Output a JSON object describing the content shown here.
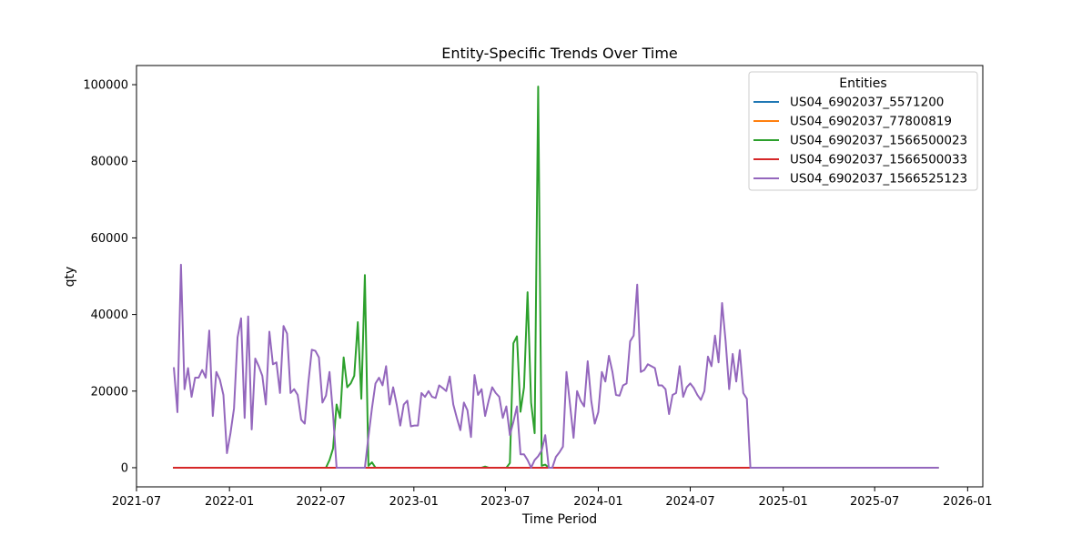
{
  "chart_data": {
    "type": "line",
    "title": "Entity-Specific Trends Over Time",
    "xlabel": "Time Period",
    "ylabel": "qty",
    "legend_title": "Entities",
    "legend_position": "top-right",
    "xlim": [
      "2021-07-01",
      "2026-01-31"
    ],
    "ylim": [
      -5000,
      105000
    ],
    "x_ticks": [
      "2021-07",
      "2022-01",
      "2022-07",
      "2023-01",
      "2023-07",
      "2024-01",
      "2024-07",
      "2025-01",
      "2025-07",
      "2026-01"
    ],
    "x_tick_dates": [
      "2021-07-01",
      "2022-01-01",
      "2022-07-01",
      "2023-01-01",
      "2023-07-01",
      "2024-01-01",
      "2024-07-01",
      "2025-01-01",
      "2025-07-01",
      "2026-01-01"
    ],
    "y_ticks": [
      0,
      20000,
      40000,
      60000,
      80000,
      100000
    ],
    "grid": false,
    "series": [
      {
        "name": "US04_6902037_5571200",
        "color": "#1f77b4",
        "points": [
          [
            "2021-09-13",
            0
          ],
          [
            "2025-11-03",
            0
          ]
        ]
      },
      {
        "name": "US04_6902037_77800819",
        "color": "#ff7f0e",
        "points": [
          [
            "2021-09-13",
            0
          ],
          [
            "2025-11-03",
            0
          ]
        ]
      },
      {
        "name": "US04_6902037_1566500023",
        "color": "#2ca02c",
        "points": [
          [
            "2021-09-13",
            0
          ],
          [
            "2022-07-11",
            0
          ],
          [
            "2022-07-18",
            2000
          ],
          [
            "2022-07-25",
            5000
          ],
          [
            "2022-08-01",
            16500
          ],
          [
            "2022-08-08",
            13000
          ],
          [
            "2022-08-15",
            28800
          ],
          [
            "2022-08-22",
            21000
          ],
          [
            "2022-08-29",
            22000
          ],
          [
            "2022-09-05",
            24000
          ],
          [
            "2022-09-12",
            38000
          ],
          [
            "2022-09-19",
            18000
          ],
          [
            "2022-09-26",
            50300
          ],
          [
            "2022-10-03",
            500
          ],
          [
            "2022-10-10",
            1400
          ],
          [
            "2022-10-17",
            0
          ],
          [
            "2023-05-15",
            0
          ],
          [
            "2023-05-22",
            300
          ],
          [
            "2023-05-29",
            0
          ],
          [
            "2023-07-03",
            0
          ],
          [
            "2023-07-10",
            1200
          ],
          [
            "2023-07-17",
            32500
          ],
          [
            "2023-07-24",
            34300
          ],
          [
            "2023-07-31",
            14600
          ],
          [
            "2023-08-07",
            21000
          ],
          [
            "2023-08-14",
            45800
          ],
          [
            "2023-08-21",
            17000
          ],
          [
            "2023-08-28",
            9000
          ],
          [
            "2023-09-04",
            99500
          ],
          [
            "2023-09-11",
            500
          ],
          [
            "2023-09-18",
            800
          ],
          [
            "2023-09-25",
            0
          ],
          [
            "2025-11-03",
            0
          ]
        ]
      },
      {
        "name": "US04_6902037_1566500033",
        "color": "#d62728",
        "points": [
          [
            "2021-09-13",
            0
          ],
          [
            "2024-11-18",
            0
          ]
        ]
      },
      {
        "name": "US04_6902037_1566525123",
        "color": "#9467bd",
        "points": [
          [
            "2021-09-13",
            26000
          ],
          [
            "2021-09-20",
            14500
          ],
          [
            "2021-09-27",
            53000
          ],
          [
            "2021-10-04",
            20500
          ],
          [
            "2021-10-11",
            26000
          ],
          [
            "2021-10-18",
            18500
          ],
          [
            "2021-10-25",
            23500
          ],
          [
            "2021-11-01",
            23500
          ],
          [
            "2021-11-08",
            25500
          ],
          [
            "2021-11-15",
            23500
          ],
          [
            "2021-11-22",
            35800
          ],
          [
            "2021-11-29",
            13500
          ],
          [
            "2021-12-06",
            25000
          ],
          [
            "2021-12-13",
            23000
          ],
          [
            "2021-12-20",
            19000
          ],
          [
            "2021-12-27",
            3800
          ],
          [
            "2022-01-03",
            9000
          ],
          [
            "2022-01-10",
            15500
          ],
          [
            "2022-01-17",
            34000
          ],
          [
            "2022-01-24",
            39000
          ],
          [
            "2022-01-31",
            13000
          ],
          [
            "2022-02-07",
            39500
          ],
          [
            "2022-02-14",
            10000
          ],
          [
            "2022-02-21",
            28500
          ],
          [
            "2022-02-28",
            26500
          ],
          [
            "2022-03-07",
            24000
          ],
          [
            "2022-03-14",
            16500
          ],
          [
            "2022-03-21",
            35500
          ],
          [
            "2022-03-28",
            27000
          ],
          [
            "2022-04-04",
            27500
          ],
          [
            "2022-04-11",
            19500
          ],
          [
            "2022-04-18",
            37000
          ],
          [
            "2022-04-25",
            35000
          ],
          [
            "2022-05-02",
            19500
          ],
          [
            "2022-05-09",
            20500
          ],
          [
            "2022-05-16",
            19000
          ],
          [
            "2022-05-23",
            12500
          ],
          [
            "2022-05-30",
            11500
          ],
          [
            "2022-06-06",
            22000
          ],
          [
            "2022-06-13",
            30800
          ],
          [
            "2022-06-20",
            30500
          ],
          [
            "2022-06-27",
            28800
          ],
          [
            "2022-07-04",
            17000
          ],
          [
            "2022-07-11",
            18800
          ],
          [
            "2022-07-18",
            25000
          ],
          [
            "2022-07-25",
            14000
          ],
          [
            "2022-08-01",
            0
          ],
          [
            "2022-09-19",
            0
          ],
          [
            "2022-09-26",
            0
          ],
          [
            "2022-10-03",
            8000
          ],
          [
            "2022-10-10",
            15500
          ],
          [
            "2022-10-17",
            22000
          ],
          [
            "2022-10-24",
            23500
          ],
          [
            "2022-10-31",
            21500
          ],
          [
            "2022-11-07",
            26500
          ],
          [
            "2022-11-14",
            16500
          ],
          [
            "2022-11-21",
            21000
          ],
          [
            "2022-11-28",
            16500
          ],
          [
            "2022-12-05",
            11000
          ],
          [
            "2022-12-12",
            16500
          ],
          [
            "2022-12-19",
            17500
          ],
          [
            "2022-12-26",
            10800
          ],
          [
            "2023-01-02",
            11000
          ],
          [
            "2023-01-09",
            11000
          ],
          [
            "2023-01-16",
            19500
          ],
          [
            "2023-01-23",
            18500
          ],
          [
            "2023-01-30",
            20000
          ],
          [
            "2023-02-06",
            18500
          ],
          [
            "2023-02-13",
            18200
          ],
          [
            "2023-02-20",
            21500
          ],
          [
            "2023-02-27",
            20800
          ],
          [
            "2023-03-06",
            20000
          ],
          [
            "2023-03-13",
            23800
          ],
          [
            "2023-03-20",
            16500
          ],
          [
            "2023-03-27",
            13000
          ],
          [
            "2023-04-03",
            9800
          ],
          [
            "2023-04-10",
            17000
          ],
          [
            "2023-04-17",
            15000
          ],
          [
            "2023-04-24",
            8000
          ],
          [
            "2023-05-01",
            24200
          ],
          [
            "2023-05-08",
            19000
          ],
          [
            "2023-05-15",
            20500
          ],
          [
            "2023-05-22",
            13500
          ],
          [
            "2023-05-29",
            17500
          ],
          [
            "2023-06-05",
            21000
          ],
          [
            "2023-06-12",
            19500
          ],
          [
            "2023-06-19",
            18500
          ],
          [
            "2023-06-26",
            13000
          ],
          [
            "2023-07-03",
            16000
          ],
          [
            "2023-07-10",
            8500
          ],
          [
            "2023-07-17",
            12000
          ],
          [
            "2023-07-24",
            16000
          ],
          [
            "2023-07-31",
            3500
          ],
          [
            "2023-08-07",
            3500
          ],
          [
            "2023-08-14",
            2000
          ],
          [
            "2023-08-21",
            0
          ],
          [
            "2023-08-28",
            2000
          ],
          [
            "2023-09-04",
            3000
          ],
          [
            "2023-09-11",
            4500
          ],
          [
            "2023-09-18",
            8500
          ],
          [
            "2023-09-25",
            0
          ],
          [
            "2023-10-02",
            0
          ],
          [
            "2023-10-09",
            2800
          ],
          [
            "2023-10-16",
            4000
          ],
          [
            "2023-10-23",
            5500
          ],
          [
            "2023-10-30",
            25000
          ],
          [
            "2023-11-06",
            16500
          ],
          [
            "2023-11-13",
            7800
          ],
          [
            "2023-11-20",
            20000
          ],
          [
            "2023-11-27",
            17500
          ],
          [
            "2023-12-04",
            16000
          ],
          [
            "2023-12-11",
            27800
          ],
          [
            "2023-12-18",
            17500
          ],
          [
            "2023-12-25",
            11500
          ],
          [
            "2024-01-01",
            14500
          ],
          [
            "2024-01-08",
            25000
          ],
          [
            "2024-01-15",
            22500
          ],
          [
            "2024-01-22",
            29200
          ],
          [
            "2024-01-29",
            25000
          ],
          [
            "2024-02-05",
            19000
          ],
          [
            "2024-02-12",
            18800
          ],
          [
            "2024-02-19",
            21500
          ],
          [
            "2024-02-26",
            22000
          ],
          [
            "2024-03-04",
            33000
          ],
          [
            "2024-03-11",
            34500
          ],
          [
            "2024-03-18",
            47800
          ],
          [
            "2024-03-25",
            25000
          ],
          [
            "2024-04-01",
            25500
          ],
          [
            "2024-04-08",
            27000
          ],
          [
            "2024-04-15",
            26500
          ],
          [
            "2024-04-22",
            26000
          ],
          [
            "2024-04-29",
            21500
          ],
          [
            "2024-05-06",
            21500
          ],
          [
            "2024-05-13",
            20500
          ],
          [
            "2024-05-20",
            14000
          ],
          [
            "2024-05-27",
            19000
          ],
          [
            "2024-06-03",
            19500
          ],
          [
            "2024-06-10",
            26500
          ],
          [
            "2024-06-17",
            18500
          ],
          [
            "2024-06-24",
            21000
          ],
          [
            "2024-07-01",
            22000
          ],
          [
            "2024-07-08",
            20800
          ],
          [
            "2024-07-15",
            19000
          ],
          [
            "2024-07-22",
            17700
          ],
          [
            "2024-07-29",
            20000
          ],
          [
            "2024-08-05",
            29000
          ],
          [
            "2024-08-12",
            26500
          ],
          [
            "2024-08-19",
            34500
          ],
          [
            "2024-08-26",
            27500
          ],
          [
            "2024-09-02",
            43000
          ],
          [
            "2024-09-09",
            33000
          ],
          [
            "2024-09-16",
            20500
          ],
          [
            "2024-09-23",
            29700
          ],
          [
            "2024-09-30",
            22500
          ],
          [
            "2024-10-07",
            30700
          ],
          [
            "2024-10-14",
            19500
          ],
          [
            "2024-10-21",
            18000
          ],
          [
            "2024-10-28",
            0
          ],
          [
            "2025-11-03",
            0
          ]
        ]
      }
    ]
  }
}
